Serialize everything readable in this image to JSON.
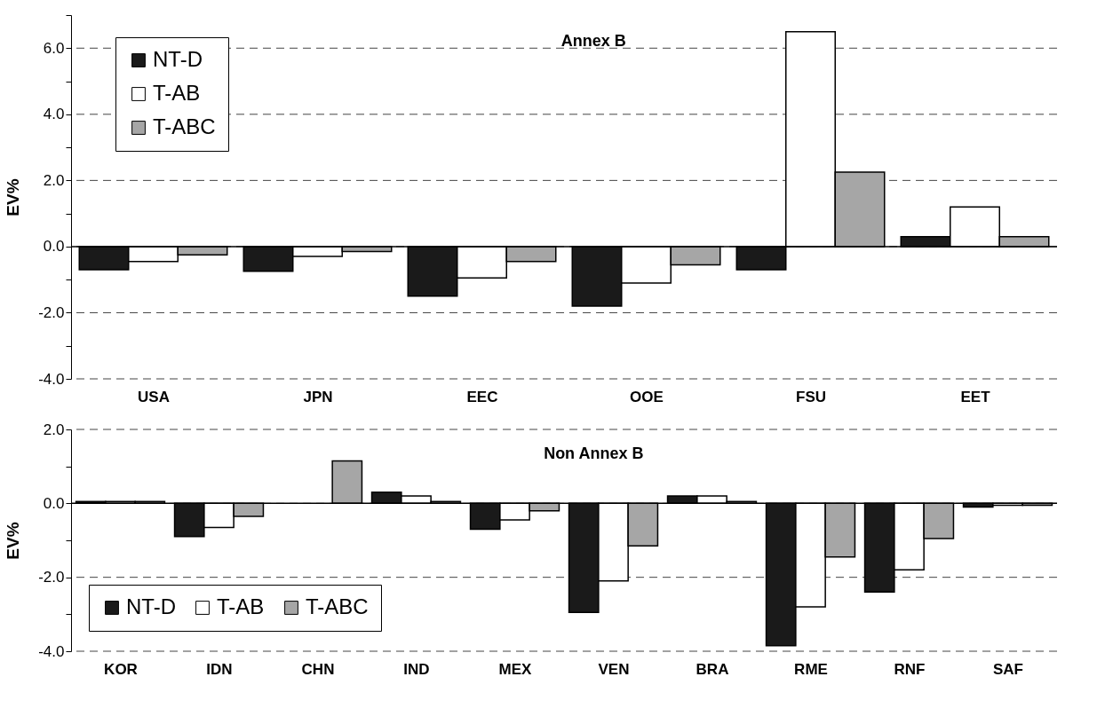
{
  "chart_data": [
    {
      "type": "bar",
      "title": "Annex  B",
      "ylabel": "EV%",
      "categories": [
        "USA",
        "JPN",
        "EEC",
        "OOE",
        "FSU",
        "EET"
      ],
      "series": [
        {
          "name": "NT-D",
          "color": "#1a1a1a",
          "values": [
            -0.7,
            -0.75,
            -1.5,
            -1.8,
            -0.7,
            0.3
          ]
        },
        {
          "name": "T-AB",
          "color": "#ffffff",
          "values": [
            -0.45,
            -0.3,
            -0.95,
            -1.1,
            6.5,
            1.2
          ]
        },
        {
          "name": "T-ABC",
          "color": "#a6a6a6",
          "values": [
            -0.25,
            -0.15,
            -0.45,
            -0.55,
            2.25,
            0.3
          ]
        }
      ],
      "ylim": [
        -4,
        7
      ],
      "yticks": [
        {
          "value": -4,
          "label": "-4.0"
        },
        {
          "value": -3,
          "label": null
        },
        {
          "value": -2,
          "label": "-2.0"
        },
        {
          "value": -1,
          "label": null
        },
        {
          "value": 0,
          "label": "0.0"
        },
        {
          "value": 1,
          "label": null
        },
        {
          "value": 2,
          "label": "2.0"
        },
        {
          "value": 3,
          "label": null
        },
        {
          "value": 4,
          "label": "4.0"
        },
        {
          "value": 5,
          "label": null
        },
        {
          "value": 6,
          "label": "6.0"
        },
        {
          "value": 7,
          "label": null
        }
      ],
      "grid": "y",
      "legend": "top left"
    },
    {
      "type": "bar",
      "title": "Non  Annex  B",
      "ylabel": "EV%",
      "categories": [
        "KOR",
        "IDN",
        "CHN",
        "IND",
        "MEX",
        "VEN",
        "BRA",
        "RME",
        "RNF",
        "SAF"
      ],
      "series": [
        {
          "name": "NT-D",
          "color": "#1a1a1a",
          "values": [
            0.05,
            -0.9,
            null,
            0.3,
            -0.7,
            -2.95,
            0.2,
            -3.85,
            -2.4,
            -0.1
          ]
        },
        {
          "name": "T-AB",
          "color": "#ffffff",
          "values": [
            0.05,
            -0.65,
            null,
            0.2,
            -0.45,
            -2.1,
            0.2,
            -2.8,
            -1.8,
            -0.05
          ]
        },
        {
          "name": "T-ABC",
          "color": "#a6a6a6",
          "values": [
            0.05,
            -0.35,
            1.15,
            0.05,
            -0.2,
            -1.15,
            0.05,
            -1.45,
            -0.95,
            -0.05
          ]
        }
      ],
      "ylim": [
        -4,
        2
      ],
      "yticks": [
        {
          "value": -4,
          "label": "-4.0"
        },
        {
          "value": -3,
          "label": null
        },
        {
          "value": -2,
          "label": "-2.0"
        },
        {
          "value": -1,
          "label": null
        },
        {
          "value": 0,
          "label": "0.0"
        },
        {
          "value": 1,
          "label": null
        },
        {
          "value": 2,
          "label": "2.0"
        }
      ],
      "grid": "y",
      "legend": "bottom left"
    }
  ]
}
